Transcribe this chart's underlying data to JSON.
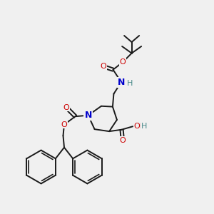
{
  "bg_color": "#f0f0f0",
  "bond_color": "#1a1a1a",
  "bond_width": 1.4,
  "atom_colors": {
    "C": "#1a1a1a",
    "N": "#0000cc",
    "O": "#cc0000",
    "H": "#4a8a8a"
  },
  "figsize": [
    3.0,
    3.0
  ],
  "dpi": 100,
  "xlim": [
    0,
    10
  ],
  "ylim": [
    0,
    10
  ]
}
